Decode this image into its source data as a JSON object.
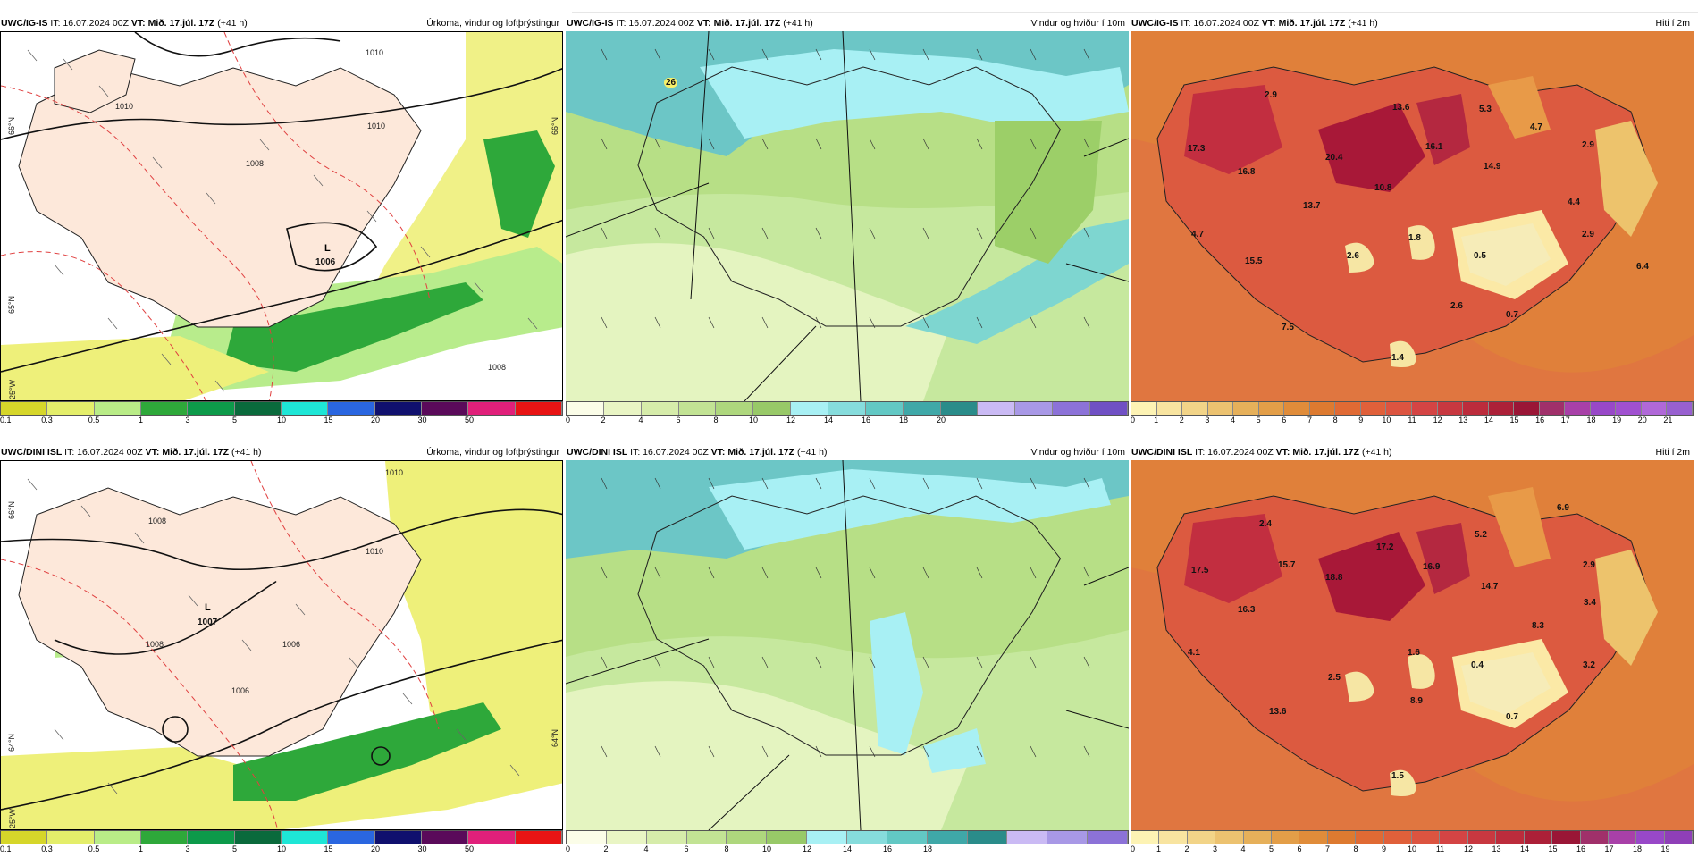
{
  "panels": {
    "ig_precip": {
      "model": "UWC/IG-IS",
      "it": "IT: 16.07.2024 00Z",
      "vt_label": "VT:",
      "vt": "Mið. 17.júl. 17Z",
      "offset": "(+41 h)",
      "title": "Úrkoma, vindur og loftþrýstingur",
      "pressure_low": "L",
      "pressure_value": "1006",
      "isobars": [
        "1010",
        "1010",
        "1008",
        "1010",
        "1008"
      ],
      "colorbar_colors": [
        "#d6d62a",
        "#e4ee6a",
        "#b9ec87",
        "#2ea83a",
        "#0d9a4a",
        "#0a6a3c",
        "#1ee6d6",
        "#2a66e0",
        "#10106e",
        "#5a0a5a",
        "#e0207a",
        "#e81414"
      ],
      "colorbar_ticks": [
        "0.1",
        "0.3",
        "0.5",
        "1",
        "3",
        "5",
        "10",
        "15",
        "20",
        "30",
        "50"
      ]
    },
    "ig_wind": {
      "model": "UWC/IG-IS",
      "it": "IT: 16.07.2024 00Z",
      "vt_label": "VT:",
      "vt": "Mið. 17.júl. 17Z",
      "offset": "(+41 h)",
      "title": "Vindur og hviður í 10m",
      "point_value": "26",
      "colorbar_colors": [
        "#fbfde8",
        "#e9f5c4",
        "#d6ecaa",
        "#c2e394",
        "#aed77d",
        "#98c968",
        "#a8f0f4",
        "#86dcdc",
        "#62c8c4",
        "#3fa8a8",
        "#2a8c8a",
        "#cabaf4",
        "#a898e6",
        "#8c72d8",
        "#7050c4"
      ],
      "colorbar_ticks": [
        "0",
        "2",
        "4",
        "6",
        "8",
        "10",
        "12",
        "14",
        "16",
        "18",
        "20"
      ]
    },
    "ig_temp": {
      "model": "UWC/IG-IS",
      "it": "IT: 16.07.2024 00Z",
      "vt_label": "VT:",
      "vt": "Mið. 17.júl. 17Z",
      "offset": "(+41 h)",
      "title": "Hiti í 2m",
      "labels": [
        "2.9",
        "13.6",
        "5.3",
        "4.7",
        "17.3",
        "20.4",
        "16.1",
        "2.9",
        "16.8",
        "14.9",
        "10.8",
        "13.7",
        "4.4",
        "4.7",
        "1.8",
        "2.9",
        "2.6",
        "0.5",
        "15.5",
        "6.4",
        "2.6",
        "0.7",
        "7.5",
        "1.4"
      ],
      "colorbar_colors": [
        "#fdf3b4",
        "#f8e4a0",
        "#f2d488",
        "#ecc270",
        "#e6b05a",
        "#e39e48",
        "#e08c3a",
        "#dd7a30",
        "#e06a34",
        "#e0603a",
        "#dc5440",
        "#d44444",
        "#c83840",
        "#bc2c3c",
        "#ac2038",
        "#9a1636",
        "#a0306a",
        "#a840a8",
        "#9848c8",
        "#a050d0",
        "#b068d8",
        "#9860d0"
      ],
      "colorbar_ticks": [
        "0",
        "1",
        "2",
        "3",
        "4",
        "5",
        "6",
        "7",
        "8",
        "9",
        "10",
        "11",
        "12",
        "13",
        "14",
        "15",
        "16",
        "17",
        "18",
        "19",
        "20",
        "21"
      ]
    },
    "dini_precip": {
      "model": "UWC/DINI ISL",
      "it": "IT: 16.07.2024 00Z",
      "vt_label": "VT:",
      "vt": "Mið. 17.júl. 17Z",
      "offset": "(+41 h)",
      "title": "Úrkoma, vindur og loftþrýstingur",
      "pressure_low": "L",
      "pressure_value": "1007",
      "isobars": [
        "1010",
        "1010",
        "1006",
        "1008",
        "1008",
        "1006"
      ],
      "colorbar_colors": [
        "#d6d62a",
        "#e4ee6a",
        "#b9ec87",
        "#2ea83a",
        "#0d9a4a",
        "#0a6a3c",
        "#1ee6d6",
        "#2a66e0",
        "#10106e",
        "#5a0a5a",
        "#e0207a",
        "#e81414"
      ],
      "colorbar_ticks": [
        "0.1",
        "0.3",
        "0.5",
        "1",
        "3",
        "5",
        "10",
        "15",
        "20",
        "30",
        "50"
      ]
    },
    "dini_wind": {
      "model": "UWC/DINI ISL",
      "it": "IT: 16.07.2024 00Z",
      "vt_label": "VT:",
      "vt": "Mið. 17.júl. 17Z",
      "offset": "(+41 h)",
      "title": "Vindur og hviður í 10m",
      "colorbar_colors": [
        "#fbfde8",
        "#e9f5c4",
        "#d6ecaa",
        "#c2e394",
        "#aed77d",
        "#98c968",
        "#a8f0f4",
        "#86dcdc",
        "#62c8c4",
        "#3fa8a8",
        "#2a8c8a",
        "#cabaf4",
        "#a898e6",
        "#8c72d8"
      ],
      "colorbar_ticks": [
        "0",
        "2",
        "4",
        "6",
        "8",
        "10",
        "12",
        "14",
        "16",
        "18"
      ]
    },
    "dini_temp": {
      "model": "UWC/DINI ISL",
      "it": "IT: 16.07.2024 00Z",
      "vt_label": "VT:",
      "vt": "Mið. 17.júl. 17Z",
      "offset": "(+41 h)",
      "title": "Hiti í 2m",
      "labels": [
        "2.4",
        "6.9",
        "17.2",
        "5.2",
        "17.5",
        "15.7",
        "18.8",
        "16.9",
        "14.7",
        "2.9",
        "16.3",
        "3.4",
        "8.3",
        "4.1",
        "1.6",
        "0.4",
        "3.2",
        "2.5",
        "8.9",
        "13.6",
        "0.7",
        "1.5"
      ],
      "colorbar_colors": [
        "#fdf3b4",
        "#f8e4a0",
        "#f2d488",
        "#ecc270",
        "#e6b05a",
        "#e39e48",
        "#e08c3a",
        "#dd7a30",
        "#e06a34",
        "#e0603a",
        "#dc5440",
        "#d44444",
        "#c83840",
        "#bc2c3c",
        "#ac2038",
        "#9a1636",
        "#a0306a",
        "#a840a8",
        "#9848c8",
        "#8f3fb8"
      ],
      "colorbar_ticks": [
        "0",
        "1",
        "2",
        "3",
        "4",
        "5",
        "6",
        "7",
        "8",
        "9",
        "10",
        "11",
        "12",
        "13",
        "14",
        "15",
        "16",
        "17",
        "18",
        "19"
      ]
    }
  },
  "grid_labels": {
    "lat_66": "66°N",
    "lat_65": "65°N",
    "lat_64": "64°N",
    "lon_25": "25°W"
  }
}
